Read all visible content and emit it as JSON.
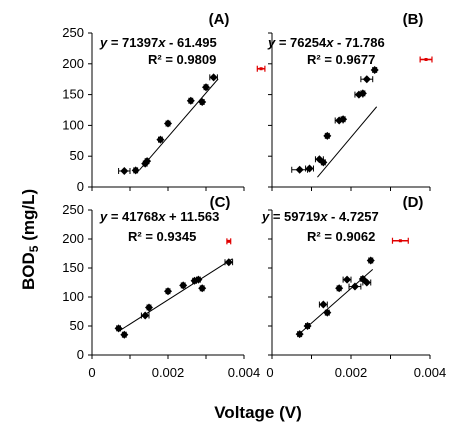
{
  "figure": {
    "ylabel": "BOD",
    "ylabel_sub": "5",
    "ylabel_unit": " (mg/L)",
    "xlabel": "Voltage (V)"
  },
  "chart_data": [
    {
      "type": "scatter",
      "panel": "(A)",
      "equation": "y = 71397x - 61.495",
      "equation_parts": {
        "y": "y",
        "mid": " = 71397",
        "x": "x",
        "rest": " - 61.495"
      },
      "r2": "R² = 0.9809",
      "xlim": [
        0,
        0.004
      ],
      "ylim": [
        0,
        250
      ],
      "yticks": [
        "0",
        "50",
        "100",
        "150",
        "200",
        "250"
      ],
      "xticks": [],
      "points": [
        {
          "x": 0.00085,
          "y": 26,
          "err": 0.0003
        },
        {
          "x": 0.00115,
          "y": 27,
          "err": 0.0001
        },
        {
          "x": 0.0014,
          "y": 38,
          "err": 0.0001
        },
        {
          "x": 0.00145,
          "y": 42,
          "err": 0.0001
        },
        {
          "x": 0.0018,
          "y": 77,
          "err": 0.0001
        },
        {
          "x": 0.002,
          "y": 103,
          "err": 0.0001
        },
        {
          "x": 0.0026,
          "y": 140,
          "err": 0.0001
        },
        {
          "x": 0.0029,
          "y": 138,
          "err": 0.0001
        },
        {
          "x": 0.003,
          "y": 162,
          "err": 0.0001
        },
        {
          "x": 0.0032,
          "y": 178,
          "err": 0.0002
        }
      ],
      "outlier": {
        "x": 0.00445,
        "y": 192,
        "err": 0.0002
      },
      "line": {
        "slope": 71397,
        "intercept": -61.495,
        "x0": 0.00125,
        "x1": 0.00332
      }
    },
    {
      "type": "scatter",
      "panel": "(B)",
      "equation": "y = 76254x - 71.786",
      "equation_parts": {
        "y": "y",
        "mid": " = 76254",
        "x": "x",
        "rest": " - 71.786"
      },
      "r2": "R² = 0.9677",
      "xlim": [
        0,
        0.004
      ],
      "ylim": [
        0,
        250
      ],
      "yticks": [],
      "xticks": [],
      "points": [
        {
          "x": 0.0007,
          "y": 28,
          "err": 0.0004
        },
        {
          "x": 0.00095,
          "y": 30,
          "err": 0.0002
        },
        {
          "x": 0.0012,
          "y": 45,
          "err": 0.0002
        },
        {
          "x": 0.0013,
          "y": 40,
          "err": 0.0001
        },
        {
          "x": 0.0014,
          "y": 83,
          "err": 0.0001
        },
        {
          "x": 0.0017,
          "y": 108,
          "err": 0.0002
        },
        {
          "x": 0.0018,
          "y": 110,
          "err": 0.0001
        },
        {
          "x": 0.0022,
          "y": 150,
          "err": 0.0002
        },
        {
          "x": 0.0023,
          "y": 152,
          "err": 0.0001
        },
        {
          "x": 0.0024,
          "y": 175,
          "err": 0.0003
        },
        {
          "x": 0.0026,
          "y": 190,
          "err": 0.0001
        }
      ],
      "outlier": {
        "x": 0.0039,
        "y": 207,
        "err": 0.0003
      },
      "line": {
        "slope": 76254,
        "intercept": -71.786,
        "x0": 0.00115,
        "x1": 0.00265
      }
    },
    {
      "type": "scatter",
      "panel": "(C)",
      "equation": "y = 41768x + 11.563",
      "equation_parts": {
        "y": "y",
        "mid": " = 41768",
        "x": "x",
        "rest": " + 11.563"
      },
      "r2": "R² = 0.9345",
      "xlim": [
        0,
        0.004
      ],
      "ylim": [
        0,
        250
      ],
      "yticks": [
        "0",
        "50",
        "100",
        "150",
        "200",
        "250"
      ],
      "xticks": [
        "0",
        "0.002",
        "0.004"
      ],
      "points": [
        {
          "x": 0.0007,
          "y": 46,
          "err": 0.0001
        },
        {
          "x": 0.00085,
          "y": 35,
          "err": 0.0001
        },
        {
          "x": 0.0014,
          "y": 68,
          "err": 0.0002
        },
        {
          "x": 0.0015,
          "y": 82,
          "err": 0.0001
        },
        {
          "x": 0.002,
          "y": 110,
          "err": 0.0001
        },
        {
          "x": 0.0024,
          "y": 120,
          "err": 0.0001
        },
        {
          "x": 0.0027,
          "y": 128,
          "err": 0.0001
        },
        {
          "x": 0.0028,
          "y": 130,
          "err": 0.0001
        },
        {
          "x": 0.0029,
          "y": 115,
          "err": 0.0001
        },
        {
          "x": 0.0036,
          "y": 160,
          "err": 0.0002
        }
      ],
      "outlier": {
        "x": 0.0036,
        "y": 196,
        "err": 0.0001
      },
      "line": {
        "slope": 41768,
        "intercept": 11.563,
        "x0": 0.0007,
        "x1": 0.0037
      }
    },
    {
      "type": "scatter",
      "panel": "(D)",
      "equation": "y = 59719x - 4.7257",
      "equation_parts": {
        "y": "y",
        "mid": " = 59719",
        "x": "x",
        "rest": " - 4.7257"
      },
      "r2": "R² = 0.9062",
      "xlim": [
        0,
        0.004
      ],
      "ylim": [
        0,
        250
      ],
      "yticks": [],
      "xticks": [
        "0",
        "0.002",
        "0.004"
      ],
      "points": [
        {
          "x": 0.0007,
          "y": 36,
          "err": 0.0001
        },
        {
          "x": 0.0009,
          "y": 50,
          "err": 0.0001
        },
        {
          "x": 0.0013,
          "y": 87,
          "err": 0.0002
        },
        {
          "x": 0.0014,
          "y": 73,
          "err": 0.0001
        },
        {
          "x": 0.0017,
          "y": 115,
          "err": 0.0001
        },
        {
          "x": 0.0019,
          "y": 130,
          "err": 0.0002
        },
        {
          "x": 0.0021,
          "y": 118,
          "err": 0.0003
        },
        {
          "x": 0.0023,
          "y": 131,
          "err": 0.0001
        },
        {
          "x": 0.0024,
          "y": 125,
          "err": 0.0002
        },
        {
          "x": 0.0025,
          "y": 163,
          "err": 0.0001
        }
      ],
      "outlier": {
        "x": 0.00325,
        "y": 197,
        "err": 0.0004
      },
      "line": {
        "slope": 59719,
        "intercept": -4.7257,
        "x0": 0.00065,
        "x1": 0.00255
      }
    }
  ]
}
